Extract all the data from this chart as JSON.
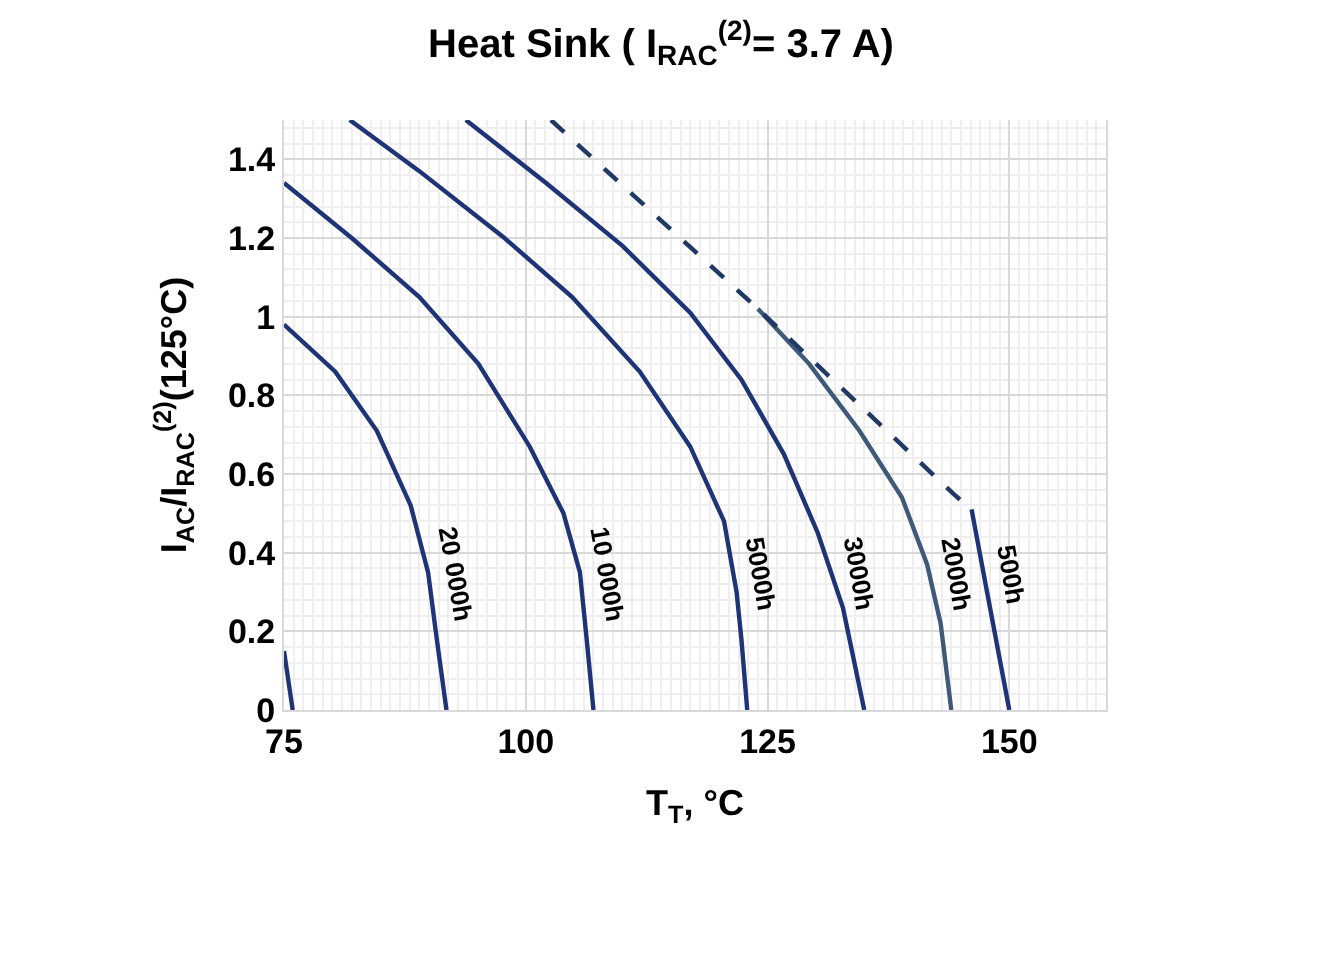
{
  "chart_data": {
    "type": "line",
    "title": "Heat Sink ( I$_{RAC}$$^{(2)}$= 3.7 A)",
    "xlabel": "T$_{T}$, °C",
    "ylabel": "I$_{AC}$/I$_{RAC}$$^{(2)}$(125°C)",
    "xlim": [
      75,
      160
    ],
    "xticks": [
      75,
      100,
      125,
      150
    ],
    "ylim": [
      0,
      1.5
    ],
    "yticks": [
      0,
      0.2,
      0.4,
      0.6,
      0.8,
      1,
      1.2,
      1.4
    ],
    "grid": true,
    "legend": false,
    "marker": "none",
    "series": [
      {
        "color": "#1f3477",
        "x": [
          75,
          75.9
        ],
        "values": [
          0.15,
          0
        ]
      },
      {
        "name": "20 000h",
        "color": "#1f3477",
        "x": [
          75,
          80.3,
          84.6,
          88.1,
          89.9,
          90.8,
          91.8
        ],
        "values": [
          0.98,
          0.86,
          0.71,
          0.52,
          0.35,
          0.18,
          0
        ]
      },
      {
        "name": "10 000h",
        "color": "#1f3477",
        "x": [
          75,
          82,
          89,
          95.1,
          100.4,
          103.9,
          105.6,
          106.3,
          107
        ],
        "values": [
          1.34,
          1.2,
          1.05,
          0.88,
          0.67,
          0.5,
          0.35,
          0.18,
          0
        ]
      },
      {
        "name": "5000h",
        "color": "#1f3477",
        "x": [
          81.8,
          89,
          97.8,
          104.8,
          111.8,
          117,
          120.5,
          121.8,
          122.3,
          122.9
        ],
        "values": [
          1.5,
          1.37,
          1.2,
          1.05,
          0.86,
          0.67,
          0.48,
          0.3,
          0.18,
          0
        ]
      },
      {
        "name": "3000h",
        "color": "#1f3477",
        "x": [
          93.8,
          102.1,
          110,
          117,
          122.3,
          126.7,
          130.2,
          132.8,
          135
        ],
        "values": [
          1.5,
          1.34,
          1.18,
          1.01,
          0.84,
          0.65,
          0.45,
          0.26,
          0
        ]
      },
      {
        "name": "2000h",
        "color": "#3f5a78",
        "x": [
          124,
          129.3,
          134.5,
          138.9,
          141.5,
          142.9,
          144
        ],
        "values": [
          1.02,
          0.88,
          0.71,
          0.54,
          0.37,
          0.22,
          0
        ]
      },
      {
        "name": "500h",
        "color": "#1f3477",
        "x": [
          146.1,
          147.7,
          150
        ],
        "values": [
          0.51,
          0.3,
          0
        ]
      },
      {
        "color": "#203864",
        "line_style": "dashed",
        "x": [
          102.6,
          124,
          144.2,
          146.1
        ],
        "values": [
          1.5,
          1.02,
          0.55,
          0.51
        ]
      }
    ]
  }
}
